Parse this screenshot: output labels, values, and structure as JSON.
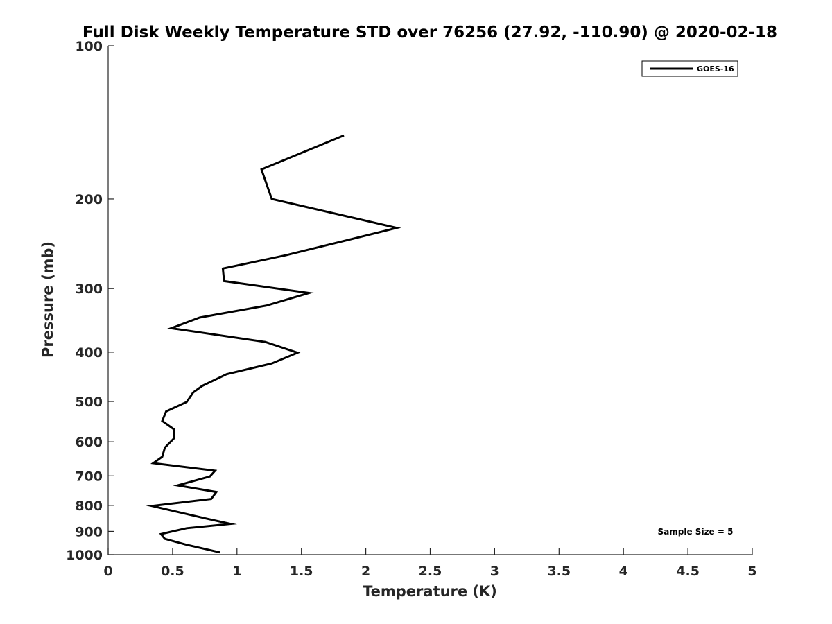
{
  "chart_data": {
    "type": "line",
    "title": "Full Disk Weekly Temperature STD over 76256 (27.92, -110.90) @ 2020-02-18",
    "xlabel": "Temperature (K)",
    "ylabel": "Pressure (mb)",
    "xlim": [
      0,
      5
    ],
    "ylim": [
      1000,
      100
    ],
    "y_scale": "log",
    "y_reversed": true,
    "grid": false,
    "legend_position": "top-right",
    "x_ticks": [
      "0",
      "0.5",
      "1",
      "1.5",
      "2",
      "2.5",
      "3",
      "3.5",
      "4",
      "4.5",
      "5"
    ],
    "y_ticks": [
      "100",
      "200",
      "300",
      "400",
      "500",
      "600",
      "700",
      "800",
      "900",
      "1000"
    ],
    "annotation": "Sample Size = 5",
    "series": [
      {
        "name": "GOES-16",
        "color": "#000000",
        "points": [
          [
            1.83,
            150
          ],
          [
            1.19,
            175
          ],
          [
            1.27,
            200
          ],
          [
            2.24,
            228
          ],
          [
            1.38,
            258
          ],
          [
            0.89,
            274
          ],
          [
            0.9,
            290
          ],
          [
            1.56,
            306
          ],
          [
            1.23,
            324
          ],
          [
            0.71,
            342
          ],
          [
            0.49,
            359
          ],
          [
            1.22,
            382
          ],
          [
            1.47,
            401
          ],
          [
            1.27,
            421
          ],
          [
            0.92,
            442
          ],
          [
            0.73,
            466
          ],
          [
            0.66,
            480
          ],
          [
            0.61,
            501
          ],
          [
            0.45,
            523
          ],
          [
            0.42,
            546
          ],
          [
            0.51,
            567
          ],
          [
            0.51,
            591
          ],
          [
            0.44,
            616
          ],
          [
            0.42,
            642
          ],
          [
            0.35,
            661
          ],
          [
            0.83,
            684
          ],
          [
            0.79,
            702
          ],
          [
            0.54,
            731
          ],
          [
            0.84,
            753
          ],
          [
            0.8,
            777
          ],
          [
            0.34,
            802
          ],
          [
            0.53,
            823
          ],
          [
            0.76,
            849
          ],
          [
            0.95,
            870
          ],
          [
            0.61,
            887
          ],
          [
            0.41,
            911
          ],
          [
            0.44,
            931
          ],
          [
            0.6,
            955
          ],
          [
            0.87,
            990
          ]
        ]
      }
    ]
  }
}
